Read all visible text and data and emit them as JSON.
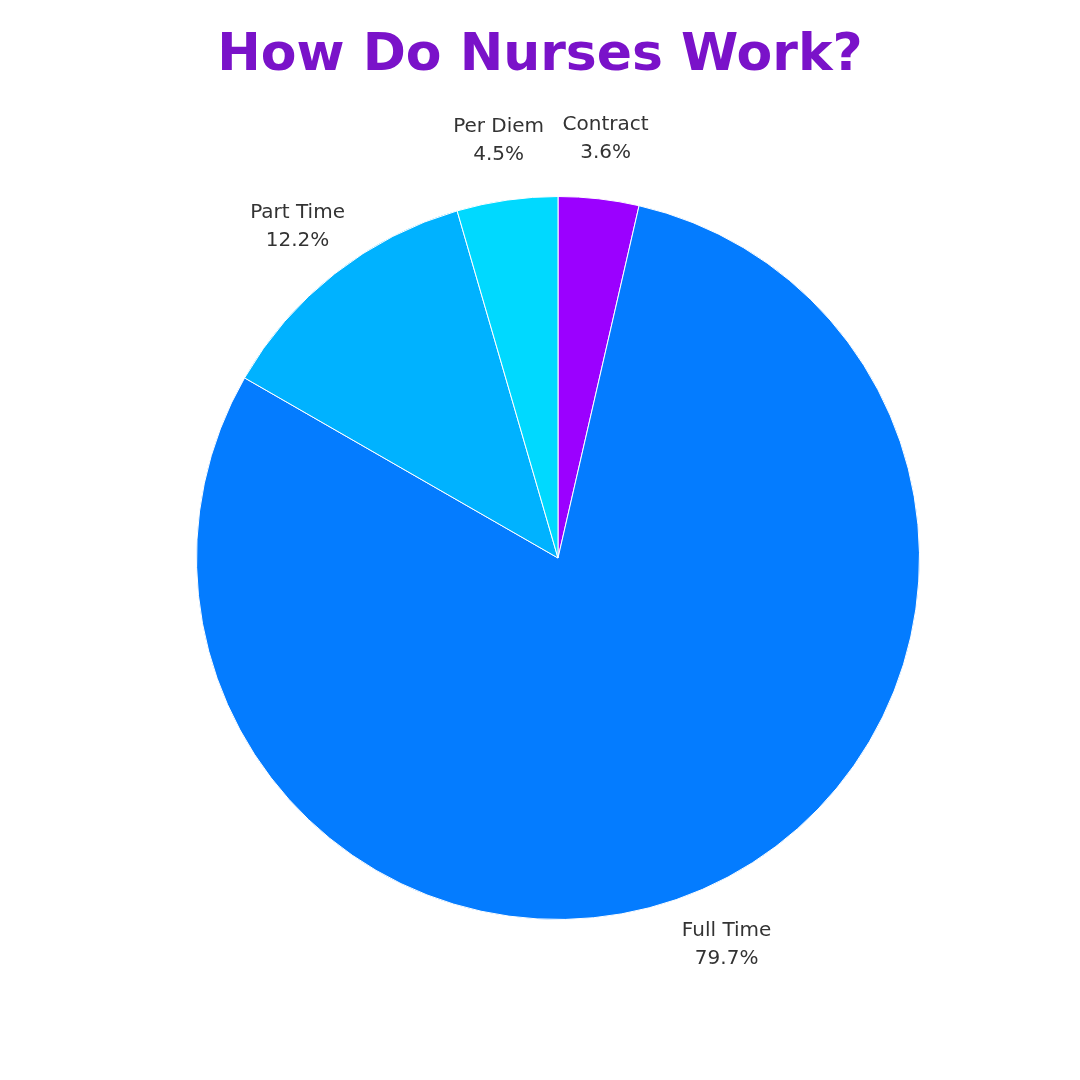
{
  "chart_data": {
    "type": "pie",
    "title": "How Do Nurses Work?",
    "categories": [
      "Contract",
      "Full Time",
      "Part Time",
      "Per Diem"
    ],
    "values": [
      3.6,
      79.7,
      12.2,
      4.5
    ],
    "colors": [
      "#9b00ff",
      "#047cff",
      "#00b2ff",
      "#00d9ff"
    ],
    "value_labels": [
      "3.6%",
      "79.7%",
      "12.2%",
      "4.5%"
    ],
    "legend": false
  }
}
